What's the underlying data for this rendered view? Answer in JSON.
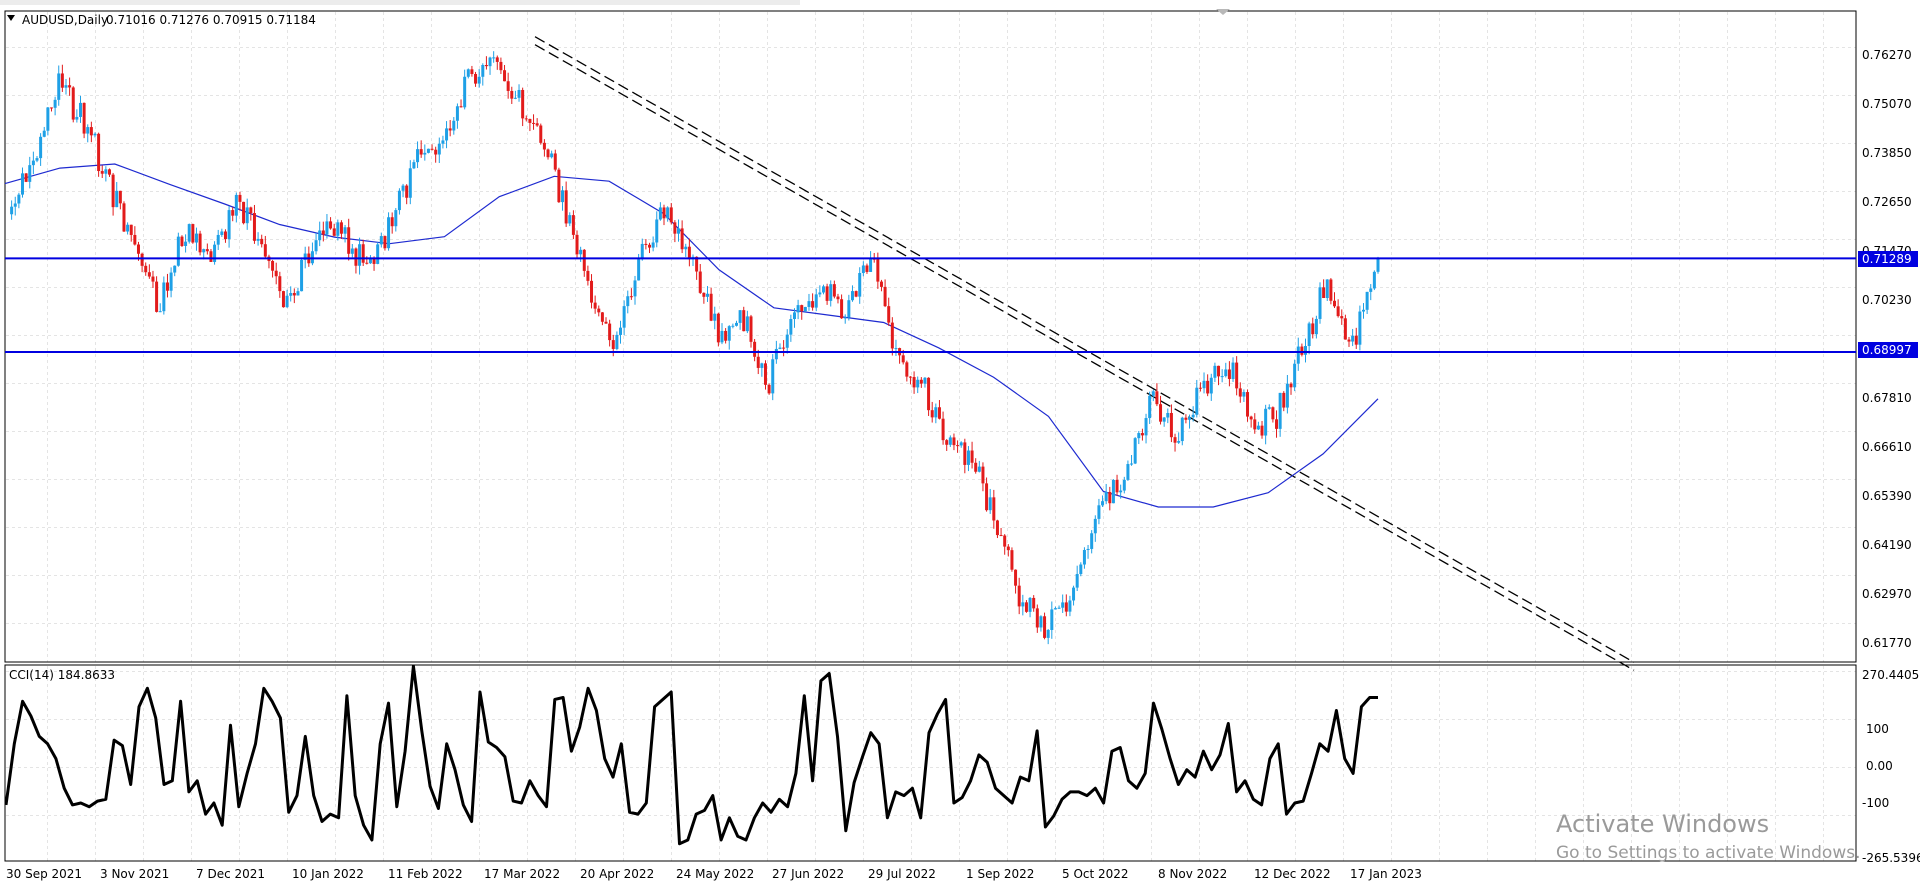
{
  "header": {
    "symbol_label": "AUDUSD,Daily",
    "ohlc": "0.71016 0.71276 0.70915 0.71184"
  },
  "indicator": {
    "label": "CCI(14) 184.8633"
  },
  "price_axis": [
    "0.76270",
    "0.75070",
    "0.73850",
    "0.72650",
    "0.71470",
    "0.70230",
    "0.67810",
    "0.66610",
    "0.65390",
    "0.64190",
    "0.62970",
    "0.61770"
  ],
  "cci_axis": [
    "270.4405",
    "100",
    "0.00",
    "-100",
    "-265.5396"
  ],
  "time_axis": [
    "30 Sep 2021",
    "3 Nov 2021",
    "7 Dec 2021",
    "10 Jan 2022",
    "11 Feb 2022",
    "17 Mar 2022",
    "20 Apr 2022",
    "24 May 2022",
    "27 Jun 2022",
    "29 Jul 2022",
    "1 Sep 2022",
    "5 Oct 2022",
    "8 Nov 2022",
    "12 Dec 2022",
    "17 Jan 2023"
  ],
  "levels": [
    {
      "label": "0.71289",
      "price": 0.71289
    },
    {
      "label": "0.68997",
      "price": 0.68997
    }
  ],
  "watermark": {
    "title": "Activate Windows",
    "subtitle": "Go to Settings to activate Windows."
  },
  "colors": {
    "bull": "#1ea0e6",
    "bear": "#e21b1b",
    "ma": "#1e2ad0",
    "level": "#0000e0",
    "cci": "#000000",
    "grid": "#c8c8c8"
  },
  "chart_data": [
    {
      "type": "candlestick",
      "title": "AUDUSD,Daily",
      "ylim": [
        0.6117,
        0.7687
      ],
      "x": [
        "30 Sep 2021",
        "3 Nov 2021",
        "7 Dec 2021",
        "10 Jan 2022",
        "11 Feb 2022",
        "17 Mar 2022",
        "20 Apr 2022",
        "24 May 2022",
        "27 Jun 2022",
        "29 Jul 2022",
        "1 Sep 2022",
        "5 Oct 2022",
        "8 Nov 2022",
        "12 Dec 2022",
        "17 Jan 2023"
      ],
      "close_path": [
        0.7237,
        0.7362,
        0.7555,
        0.7465,
        0.731,
        0.7143,
        0.7012,
        0.7202,
        0.7112,
        0.7258,
        0.7178,
        0.7015,
        0.7152,
        0.7215,
        0.7113,
        0.7202,
        0.7352,
        0.742,
        0.7554,
        0.7622,
        0.7525,
        0.744,
        0.7235,
        0.703,
        0.6928,
        0.7162,
        0.7257,
        0.713,
        0.694,
        0.6972,
        0.683,
        0.6992,
        0.7058,
        0.7002,
        0.7132,
        0.69,
        0.6822,
        0.6698,
        0.664,
        0.6455,
        0.6278,
        0.6228,
        0.6315,
        0.6495,
        0.66,
        0.678,
        0.67,
        0.68,
        0.6885,
        0.672,
        0.6745,
        0.69,
        0.7075,
        0.692,
        0.7128
      ],
      "moving_average": [
        0.7312,
        0.735,
        0.736,
        0.731,
        0.7262,
        0.7212,
        0.7181,
        0.7165,
        0.7182,
        0.728,
        0.733,
        0.7318,
        0.7238,
        0.7101,
        0.7008,
        0.699,
        0.6972,
        0.691,
        0.6838,
        0.6742,
        0.6558,
        0.652,
        0.652,
        0.6555,
        0.665,
        0.6785
      ],
      "horizontal_levels": [
        0.71289,
        0.68997
      ],
      "trendline_from": [
        "17 Mar 2022",
        0.7662
      ],
      "trendline_to": [
        "after 17 Jan 2023",
        0.613
      ]
    },
    {
      "type": "line",
      "title": "CCI(14) 184.8633",
      "ylim": [
        -265.5396,
        270.4405
      ],
      "series": [
        {
          "values": [
            -105,
            60,
            175,
            135,
            80,
            60,
            20,
            -60,
            -105,
            -100,
            -110,
            -95,
            -90,
            70,
            55,
            -50,
            160,
            210,
            130,
            -50,
            -40,
            175,
            -70,
            -40,
            -130,
            -100,
            -160,
            110,
            -110,
            -20,
            60,
            210,
            175,
            130,
            -125,
            -80,
            80,
            -80,
            -150,
            -130,
            -140,
            190,
            -80,
            -160,
            -200,
            60,
            170,
            -110,
            40,
            270,
            95,
            -55,
            -115,
            60,
            -10,
            -105,
            -150,
            200,
            65,
            50,
            25,
            -95,
            -100,
            -40,
            -80,
            -110,
            180,
            185,
            40,
            105,
            210,
            150,
            20,
            -30,
            60,
            -125,
            -130,
            -100,
            160,
            180,
            200,
            -210,
            -200,
            -130,
            -120,
            -80,
            -200,
            -140,
            -190,
            -200,
            -140,
            -100,
            -125,
            -90,
            -110,
            -20,
            190,
            -40,
            230,
            250,
            80,
            -175,
            -45,
            25,
            90,
            60,
            -140,
            -70,
            -80,
            -60,
            -140,
            90,
            140,
            180,
            -100,
            -85,
            -40,
            30,
            10,
            -60,
            -80,
            -100,
            -30,
            -40,
            95,
            -165,
            -135,
            -90,
            -70,
            -70,
            -80,
            -60,
            -100,
            40,
            50,
            -40,
            -60,
            -20,
            170,
            100,
            20,
            -50,
            -10,
            -30,
            40,
            -10,
            30,
            115,
            -70,
            -40,
            -90,
            -105,
            20,
            60,
            -130,
            -100,
            -95,
            -20,
            60,
            40,
            150,
            20,
            -20,
            160,
            185,
            185
          ]
        }
      ],
      "reference_levels": [
        100,
        0,
        -100
      ]
    }
  ]
}
